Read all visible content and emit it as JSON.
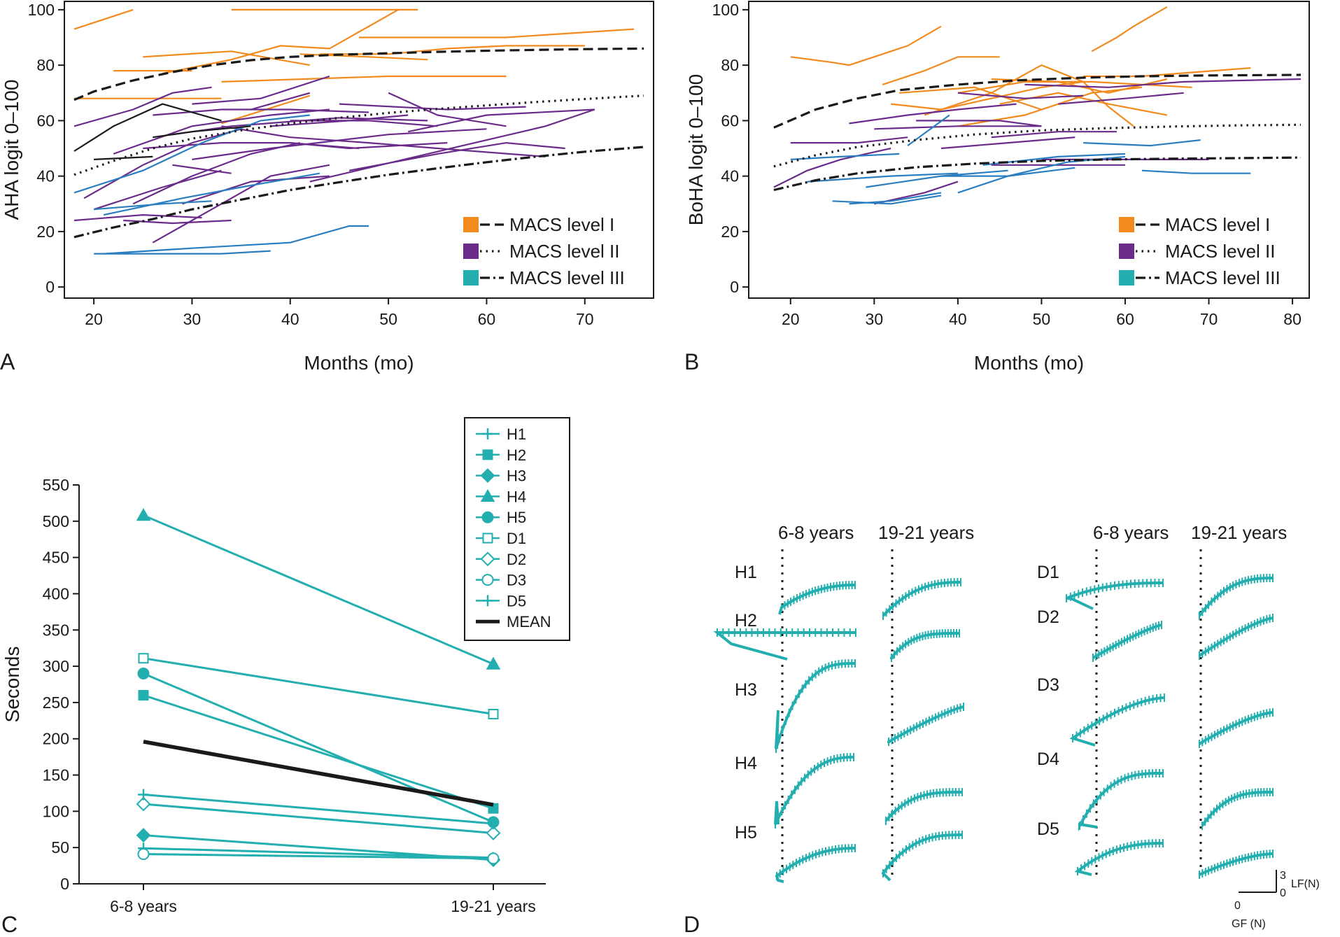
{
  "colors": {
    "level1": "#f28a1e",
    "level2": "#6a2b8a",
    "level3": "#2a7ec0",
    "teal": "#23afb0",
    "black": "#1a1a1a"
  },
  "panel_labels": {
    "a": "A",
    "b": "B",
    "c": "C",
    "d": "D"
  },
  "legend_ab": [
    "MACS level I",
    "MACS level II",
    "MACS level III"
  ],
  "chart_data": [
    {
      "id": "A",
      "type": "line",
      "ylabel": "AHA logit 0–100",
      "xlabel": "Months (mo)",
      "xlim": [
        17,
        77
      ],
      "ylim": [
        -4,
        103
      ],
      "xticks": [
        20,
        30,
        40,
        50,
        60,
        70
      ],
      "yticks": [
        0,
        20,
        40,
        60,
        80,
        100
      ],
      "series": [
        {
          "name": "MACS level I",
          "x": [
            18,
            20,
            24,
            28,
            32,
            36,
            40,
            45,
            50,
            55,
            60,
            65,
            70,
            76
          ],
          "values": [
            67.5,
            70.5,
            74.5,
            77.5,
            80,
            81.8,
            83,
            83.8,
            84.3,
            84.8,
            85.2,
            85.5,
            85.8,
            86
          ]
        },
        {
          "name": "MACS level II",
          "x": [
            18,
            22,
            26,
            30,
            35,
            40,
            45,
            50,
            55,
            60,
            65,
            70,
            76
          ],
          "values": [
            40.5,
            45.5,
            50,
            53.5,
            56.5,
            59,
            61,
            62.8,
            64.2,
            65.5,
            66.7,
            67.8,
            69
          ]
        },
        {
          "name": "MACS level III",
          "x": [
            18,
            22,
            26,
            30,
            35,
            40,
            45,
            50,
            55,
            60,
            65,
            70,
            76
          ],
          "values": [
            18,
            21.5,
            24.5,
            28,
            31.5,
            35,
            37.8,
            40.5,
            42.8,
            45,
            47,
            48.8,
            50.5
          ]
        }
      ]
    },
    {
      "id": "B",
      "type": "line",
      "ylabel": "BoHA logit 0–100",
      "xlabel": "Months (mo)",
      "xlim": [
        15,
        82
      ],
      "ylim": [
        -4,
        103
      ],
      "xticks": [
        20,
        30,
        40,
        50,
        60,
        70,
        80
      ],
      "yticks": [
        0,
        20,
        40,
        60,
        80,
        100
      ],
      "series": [
        {
          "name": "MACS level I",
          "x": [
            18,
            23,
            28,
            33,
            40,
            47,
            55,
            62,
            70,
            81
          ],
          "values": [
            57.5,
            64,
            68,
            71,
            73,
            74.5,
            75.5,
            76,
            76.3,
            76.5
          ]
        },
        {
          "name": "MACS level II",
          "x": [
            18,
            23,
            28,
            35,
            42,
            50,
            58,
            66,
            74,
            81
          ],
          "values": [
            43.5,
            47.5,
            50.5,
            53,
            55,
            56.5,
            57.3,
            57.9,
            58.3,
            58.5
          ]
        },
        {
          "name": "MACS level III",
          "x": [
            18,
            23,
            28,
            35,
            42,
            50,
            58,
            66,
            74,
            81
          ],
          "values": [
            35,
            38.5,
            41,
            43.2,
            44.5,
            45.5,
            46,
            46.3,
            46.5,
            46.7
          ]
        }
      ]
    },
    {
      "id": "C",
      "type": "line",
      "ylabel": "Seconds",
      "categories": [
        "6-8 years",
        "19-21 years"
      ],
      "ylim": [
        0,
        550
      ],
      "yticks": [
        0,
        50,
        100,
        150,
        200,
        250,
        300,
        350,
        400,
        450,
        500,
        550
      ],
      "series": [
        {
          "name": "H1",
          "marker": "plus",
          "values": [
            49,
            36
          ]
        },
        {
          "name": "H2",
          "marker": "square-filled",
          "values": [
            260,
            104
          ]
        },
        {
          "name": "H3",
          "marker": "diamond-filled",
          "values": [
            67,
            33
          ]
        },
        {
          "name": "H4",
          "marker": "triangle-filled",
          "values": [
            508,
            303
          ]
        },
        {
          "name": "H5",
          "marker": "circle-filled",
          "values": [
            290,
            85
          ]
        },
        {
          "name": "D1",
          "marker": "square-open",
          "values": [
            311,
            234
          ]
        },
        {
          "name": "D2",
          "marker": "diamond-open",
          "values": [
            110,
            70
          ]
        },
        {
          "name": "D3",
          "marker": "circle-open",
          "values": [
            41,
            35
          ]
        },
        {
          "name": "D5",
          "marker": "plus",
          "values": [
            123,
            83
          ]
        },
        {
          "name": "MEAN",
          "marker": "none",
          "values": [
            196,
            109
          ]
        }
      ]
    },
    {
      "id": "D",
      "type": "line",
      "xlabel": "GF (N)",
      "ylabel": "LF(N)",
      "column_titles": [
        "6-8 years",
        "19-21 years",
        "6-8 years",
        "19-21 years"
      ],
      "row_labels_left": [
        "H1",
        "H2",
        "H3",
        "H4",
        "H5"
      ],
      "row_labels_right": [
        "D1",
        "D2",
        "D3",
        "D4",
        "D5"
      ],
      "scale_bar": {
        "x_label": "0",
        "y_top": "3",
        "y_bottom": "0"
      }
    }
  ]
}
